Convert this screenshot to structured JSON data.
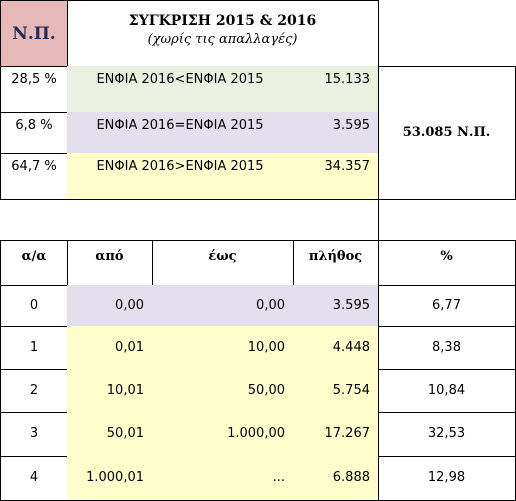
{
  "header": {
    "np_label": "Ν.Π.",
    "title": "ΣΥΓΚΡΙΣΗ 2015 & 2016",
    "subtitle": "(χωρίς τις απαλλαγές)"
  },
  "summary": {
    "rows": [
      {
        "pct": "28,5 %",
        "label": "ΕΝΦΙΑ 2016<ΕΝΦΙΑ 2015",
        "value": "15.133",
        "color": "#ebf1de"
      },
      {
        "pct": "6,8 %",
        "label": "ΕΝΦΙΑ 2016=ΕΝΦΙΑ 2015",
        "value": "3.595",
        "color": "#e4dfec"
      },
      {
        "pct": "64,7 %",
        "label": "ΕΝΦΙΑ 2016>ΕΝΦΙΑ 2015",
        "value": "34.357",
        "color": "#ffffcc"
      }
    ],
    "total": "53.085 Ν.Π."
  },
  "table": {
    "headers": [
      "α/α",
      "από",
      "έως",
      "πλήθος",
      "%"
    ],
    "rows": [
      {
        "aa": "0",
        "from": "0,00",
        "to": "0,00",
        "count": "3.595",
        "pct": "6,77",
        "color": "#e4dfec"
      },
      {
        "aa": "1",
        "from": "0,01",
        "to": "10,00",
        "count": "4.448",
        "pct": "8,38",
        "color": "#ffffcc"
      },
      {
        "aa": "2",
        "from": "10,01",
        "to": "50,00",
        "count": "5.754",
        "pct": "10,84",
        "color": "#ffffcc"
      },
      {
        "aa": "3",
        "from": "50,01",
        "to": "1.000,00",
        "count": "17.267",
        "pct": "32,53",
        "color": "#ffffcc"
      },
      {
        "aa": "4",
        "from": "1.000,01",
        "to": "...",
        "count": "6.888",
        "pct": "12,98",
        "color": "#ffffcc"
      }
    ]
  }
}
